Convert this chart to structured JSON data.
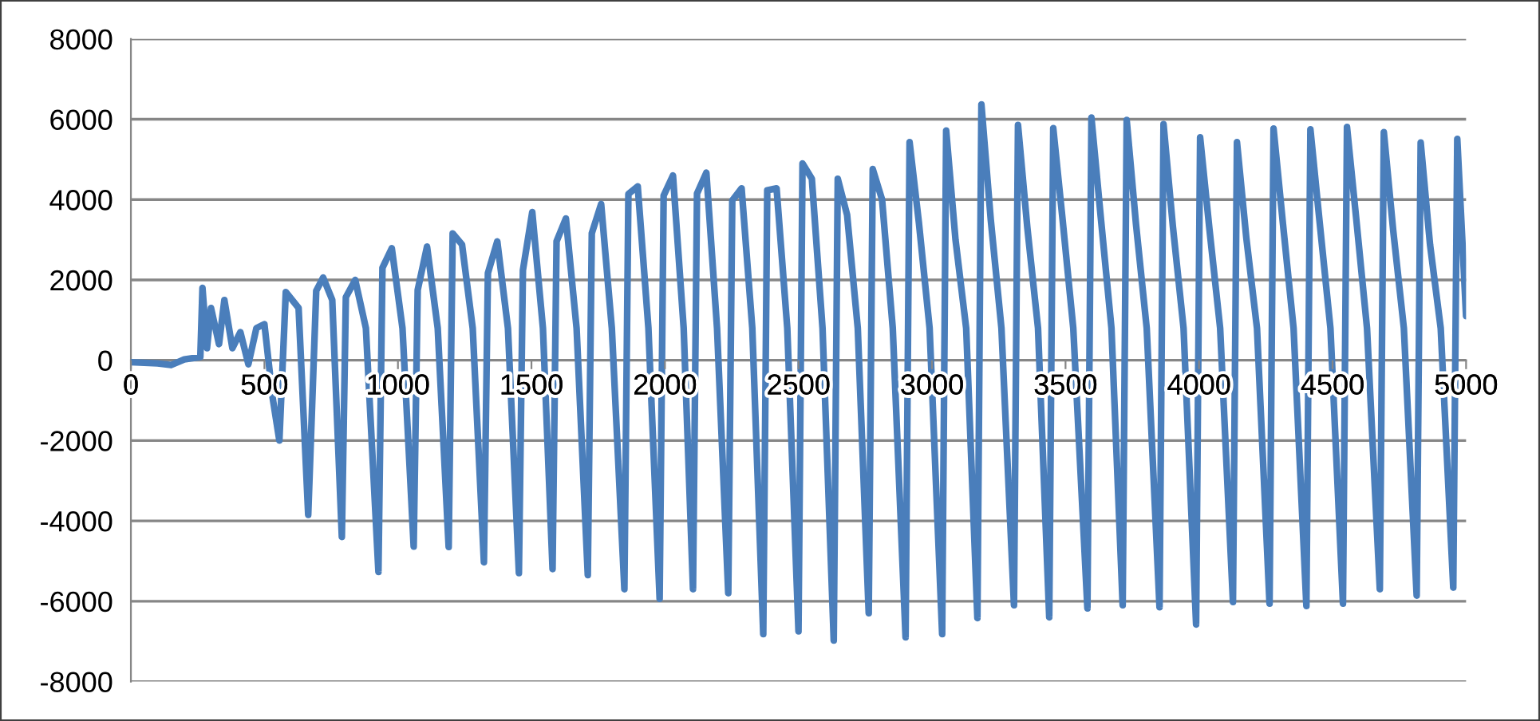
{
  "chart_data": {
    "type": "line",
    "color": "#4a7ebb",
    "grid": "y",
    "xlim": [
      0,
      5000
    ],
    "xticks": [
      0,
      500,
      1000,
      1500,
      2000,
      2500,
      3000,
      3500,
      4000,
      4500,
      5000
    ],
    "ylim": [
      -8000,
      8000
    ],
    "yticks": [
      -8000,
      -6000,
      -4000,
      -2000,
      0,
      2000,
      4000,
      6000,
      8000
    ],
    "x": [
      0,
      100,
      150,
      200,
      260,
      268,
      285,
      300,
      330,
      350,
      380,
      410,
      440,
      470,
      500,
      530,
      556,
      580,
      628,
      664,
      694,
      720,
      754,
      790,
      805,
      840,
      880,
      927,
      942,
      977,
      1017,
      1059,
      1074,
      1109,
      1149,
      1190,
      1205,
      1240,
      1280,
      1322,
      1337,
      1372,
      1412,
      1453,
      1468,
      1503,
      1543,
      1579,
      1594,
      1629,
      1669,
      1711,
      1726,
      1761,
      1801,
      1848,
      1863,
      1898,
      1938,
      1980,
      1995,
      2030,
      2070,
      2105,
      2120,
      2155,
      2195,
      2237,
      2252,
      2287,
      2327,
      2368,
      2383,
      2418,
      2458,
      2500,
      2515,
      2550,
      2590,
      2632,
      2647,
      2682,
      2722,
      2763,
      2778,
      2813,
      2853,
      2901,
      2916,
      2951,
      2991,
      3038,
      3053,
      3088,
      3128,
      3170,
      3185,
      3220,
      3260,
      3307,
      3322,
      3357,
      3397,
      3439,
      3454,
      3489,
      3529,
      3582,
      3597,
      3632,
      3672,
      3714,
      3729,
      3764,
      3804,
      3852,
      3867,
      3902,
      3942,
      3989,
      4004,
      4039,
      4079,
      4127,
      4142,
      4177,
      4217,
      4264,
      4279,
      4314,
      4354,
      4402,
      4417,
      4452,
      4492,
      4539,
      4554,
      4589,
      4629,
      4677,
      4692,
      4727,
      4767,
      4815,
      4830,
      4865,
      4905,
      4952,
      4967,
      5000
    ],
    "values": [
      -50,
      -80,
      -120,
      20,
      80,
      1800,
      300,
      1300,
      400,
      1500,
      300,
      700,
      -100,
      800,
      900,
      -900,
      -2000,
      1700,
      1300,
      -3850,
      1730,
      2060,
      1500,
      -4400,
      1570,
      2000,
      800,
      -5270,
      2300,
      2790,
      800,
      -4640,
      1750,
      2830,
      800,
      -4650,
      3160,
      2880,
      800,
      -5030,
      2170,
      2960,
      800,
      -5300,
      2240,
      3690,
      800,
      -5200,
      2960,
      3530,
      800,
      -5350,
      3160,
      3890,
      800,
      -5700,
      4140,
      4330,
      800,
      -5940,
      4100,
      4600,
      800,
      -5700,
      4150,
      4670,
      800,
      -5800,
      3980,
      4280,
      800,
      -6820,
      4230,
      4280,
      800,
      -6750,
      4900,
      4520,
      800,
      -6980,
      4520,
      3620,
      800,
      -6300,
      4760,
      4000,
      800,
      -6900,
      5430,
      3420,
      800,
      -6820,
      5720,
      3000,
      800,
      -6420,
      6370,
      3500,
      800,
      -6100,
      5860,
      3300,
      800,
      -6400,
      5780,
      3500,
      800,
      -6180,
      6040,
      3560,
      800,
      -6100,
      5980,
      3380,
      800,
      -6150,
      5880,
      3330,
      800,
      -6580,
      5550,
      3260,
      800,
      -6020,
      5430,
      3050,
      800,
      -6060,
      5770,
      3410,
      800,
      -6120,
      5750,
      3410,
      800,
      -6060,
      5810,
      3500,
      800,
      -5700,
      5680,
      3240,
      800,
      -5860,
      5420,
      2880,
      800,
      -5660,
      5510,
      1100
    ]
  }
}
